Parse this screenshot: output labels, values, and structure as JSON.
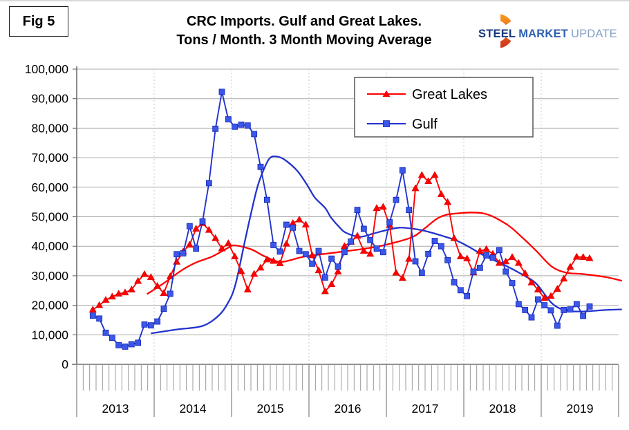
{
  "figure_label": "Fig 5",
  "title_line1": "CRC Imports. Gulf and Great Lakes.",
  "title_line2": "Tons / Month. 3 Month Moving Average",
  "logo": {
    "steel": "STEEL",
    "market": "MARKET",
    "update": "UPDATE",
    "steel_color": "#16387E",
    "market_color": "#2E5FB0",
    "update_color": "#84A0C6",
    "ring_color_top": "#F7941D",
    "ring_color_bottom": "#D13A1C"
  },
  "chart_data": {
    "type": "line",
    "title": "CRC Imports. Gulf and Great Lakes. Tons / Month. 3 Month Moving Average",
    "xlabel": "",
    "ylabel": "",
    "ylim": [
      0,
      100000
    ],
    "ytick_step": 10000,
    "grid": true,
    "legend_position": "top-center",
    "x_years": [
      2013,
      2014,
      2015,
      2016,
      2017,
      2018,
      2019
    ],
    "x_start_month": "2013-03",
    "axis_color": "#6E6E6E",
    "gridline_color": "#ABABAB",
    "year_divider_color": "#C9C9C9",
    "series": [
      {
        "name": "Great Lakes",
        "color": "#FF0000",
        "marker": "triangle",
        "marker_fill": "#FF0000",
        "values": [
          18500,
          20000,
          21800,
          22900,
          23900,
          24300,
          25300,
          28200,
          30500,
          29500,
          26500,
          24100,
          29800,
          34700,
          38200,
          40500,
          45900,
          47800,
          45500,
          42700,
          39200,
          41000,
          36500,
          31500,
          25300,
          30600,
          32700,
          35500,
          35000,
          34200,
          40800,
          47800,
          49000,
          47300,
          36900,
          31800,
          24700,
          27100,
          31400,
          40000,
          41500,
          43500,
          38400,
          37400,
          52900,
          53300,
          47100,
          31000,
          29200,
          35700,
          59600,
          64100,
          62000,
          64100,
          57600,
          54900,
          42700,
          36500,
          35800,
          31100,
          38400,
          39000,
          37400,
          34300,
          34800,
          36300,
          34300,
          30800,
          27700,
          25300,
          22400,
          23100,
          25500,
          29000,
          33000,
          36400,
          36300,
          35900
        ]
      },
      {
        "name": "Gulf",
        "color": "#2233CC",
        "marker": "square",
        "marker_fill": "#3A57E8",
        "values": [
          16500,
          15500,
          10700,
          9000,
          6500,
          6000,
          6800,
          7300,
          13500,
          13200,
          14500,
          18800,
          23900,
          37300,
          37600,
          46800,
          39200,
          48400,
          61400,
          79800,
          92300,
          83000,
          80500,
          81200,
          80900,
          78000,
          66900,
          55700,
          40400,
          38200,
          47300,
          46300,
          38400,
          37300,
          34100,
          38400,
          29400,
          35800,
          33100,
          38000,
          41600,
          52300,
          45900,
          42100,
          39200,
          38000,
          48100,
          55700,
          65700,
          52300,
          34900,
          31000,
          37400,
          41800,
          40000,
          35300,
          27800,
          25100,
          23100,
          31400,
          32700,
          36900,
          36100,
          38700,
          31400,
          27500,
          20400,
          18400,
          15900,
          22000,
          20000,
          18300,
          13100,
          18400,
          18600,
          20400,
          16400,
          19600
        ]
      }
    ],
    "trend_lines": [
      {
        "series": "Great Lakes",
        "color": "#FF0000",
        "points": [
          [
            10.4,
            23800
          ],
          [
            13,
            27500
          ],
          [
            15.8,
            31900
          ],
          [
            18,
            34500
          ],
          [
            20.5,
            36500
          ],
          [
            23,
            39500
          ],
          [
            24,
            40300
          ],
          [
            26.5,
            39000
          ],
          [
            28.7,
            36500
          ],
          [
            31.2,
            34700
          ],
          [
            34.8,
            36500
          ],
          [
            40.1,
            38000
          ],
          [
            44.2,
            39200
          ],
          [
            47.2,
            40400
          ],
          [
            51.4,
            43000
          ],
          [
            53.4,
            46000
          ],
          [
            55.7,
            49800
          ],
          [
            58.3,
            51100
          ],
          [
            62.6,
            51100
          ],
          [
            66.1,
            47500
          ],
          [
            68.5,
            43100
          ],
          [
            70.7,
            38500
          ],
          [
            73.2,
            33000
          ],
          [
            75.5,
            31000
          ],
          [
            77.8,
            30600
          ],
          [
            81.4,
            29600
          ],
          [
            84,
            28300
          ]
        ]
      },
      {
        "series": "Gulf",
        "color": "#2233CC",
        "points": [
          [
            11,
            10500
          ],
          [
            15,
            11800
          ],
          [
            19,
            13000
          ],
          [
            21.5,
            16500
          ],
          [
            23,
            21000
          ],
          [
            24.1,
            27000
          ],
          [
            25.4,
            40000
          ],
          [
            26.4,
            50000
          ],
          [
            27.5,
            60000
          ],
          [
            28.4,
            65500
          ],
          [
            29.4,
            69800
          ],
          [
            30.5,
            70400
          ],
          [
            31.8,
            69200
          ],
          [
            33.7,
            65500
          ],
          [
            35.3,
            60500
          ],
          [
            36.4,
            56500
          ],
          [
            38,
            53000
          ],
          [
            38.9,
            49800
          ],
          [
            40.2,
            46500
          ],
          [
            41.2,
            44600
          ],
          [
            43.4,
            43200
          ],
          [
            45.5,
            44300
          ],
          [
            47.2,
            45300
          ],
          [
            49.5,
            46300
          ],
          [
            52,
            45800
          ],
          [
            54.2,
            44800
          ],
          [
            56.5,
            43300
          ],
          [
            58.3,
            42000
          ],
          [
            60.3,
            39800
          ],
          [
            62.5,
            37000
          ],
          [
            66.1,
            33300
          ],
          [
            68.5,
            30500
          ],
          [
            70.7,
            27400
          ],
          [
            73.2,
            20600
          ],
          [
            75.3,
            18300
          ],
          [
            77.8,
            17900
          ],
          [
            81.4,
            18400
          ],
          [
            84,
            18600
          ]
        ]
      }
    ]
  }
}
